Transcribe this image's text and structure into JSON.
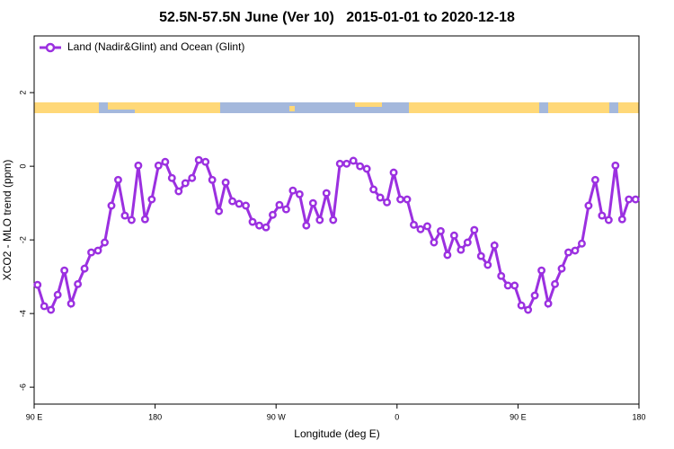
{
  "chart_data": {
    "type": "line",
    "title": "52.5N-57.5N June (Ver 10)   2015-01-01 to 2020-12-18",
    "x_label": "Longitude (deg E)",
    "y_label": "XCO2 - MLO trend (ppm)",
    "legend": "top-left",
    "xlim": [
      90,
      540
    ],
    "ylim": [
      -6.46,
      3.54
    ],
    "xticks": [
      {
        "value": 90,
        "label": "90 E"
      },
      180,
      {
        "value": 270,
        "label": "90 W"
      },
      {
        "value": 360,
        "label": "0"
      },
      {
        "value": 450,
        "label": "90 E"
      },
      {
        "value": 540,
        "label": "180"
      }
    ],
    "yticks": [
      2,
      0,
      -2,
      -4,
      -6
    ],
    "x": [
      92.5,
      97.5,
      102.5,
      107.5,
      112.5,
      117.5,
      122.5,
      127.5,
      132.5,
      137.5,
      142.5,
      147.5,
      152.5,
      157.5,
      162.5,
      167.5,
      172.5,
      177.5,
      182.5,
      187.5,
      192.5,
      197.5,
      202.5,
      207.5,
      212.5,
      217.5,
      222.5,
      227.5,
      232.5,
      237.5,
      242.5,
      247.5,
      252.5,
      257.5,
      262.5,
      267.5,
      272.5,
      277.5,
      282.5,
      287.5,
      292.5,
      297.5,
      302.5,
      307.5,
      312.5,
      317.5,
      322.5,
      327.5,
      332.5,
      337.5,
      342.5,
      347.5,
      352.5,
      357.5,
      362.5,
      367.5,
      372.5,
      377.5,
      382.5,
      387.5,
      392.5,
      397.5,
      402.5,
      407.5,
      412.5,
      417.5,
      422.5,
      427.5,
      432.5,
      437.5,
      442.5,
      447.5,
      452.5,
      457.5,
      462.5,
      467.5,
      472.5,
      477.5,
      482.5,
      487.5,
      492.5,
      497.5,
      502.5,
      507.5,
      512.5,
      517.5,
      522.5,
      527.5,
      532.5,
      537.5
    ],
    "series": [
      {
        "name": "Land (Nadir&Glint) and Ocean (Glint)",
        "color": "#9b30e0",
        "values": [
          -3.22,
          -3.8,
          -3.9,
          -3.49,
          -2.83,
          -3.73,
          -3.2,
          -2.78,
          -2.34,
          -2.29,
          -2.07,
          -1.07,
          -0.37,
          -1.34,
          -1.46,
          0.02,
          -1.44,
          -0.9,
          0.02,
          0.12,
          -0.32,
          -0.68,
          -0.46,
          -0.32,
          0.17,
          0.12,
          -0.37,
          -1.22,
          -0.44,
          -0.95,
          -1.02,
          -1.07,
          -1.51,
          -1.61,
          -1.66,
          -1.32,
          -1.05,
          -1.17,
          -0.66,
          -0.76,
          -1.61,
          -1.0,
          -1.46,
          -0.73,
          -1.46,
          0.07,
          0.07,
          0.15,
          0.0,
          -0.07,
          -0.63,
          -0.85,
          -0.98,
          -0.17,
          -0.9,
          -0.9,
          -1.59,
          -1.71,
          -1.63,
          -2.07,
          -1.76,
          -2.41,
          -1.88,
          -2.27,
          -2.07,
          -1.73,
          -2.44,
          -2.68,
          -2.15,
          -2.98,
          -3.24,
          -3.24,
          -3.78,
          -3.9,
          -3.51,
          -2.83,
          -3.73,
          -3.2,
          -2.78,
          -2.34,
          -2.29,
          -2.1,
          -1.07,
          -0.37,
          -1.34,
          -1.46,
          0.02,
          -1.44,
          -0.9,
          -0.9
        ]
      }
    ]
  }
}
